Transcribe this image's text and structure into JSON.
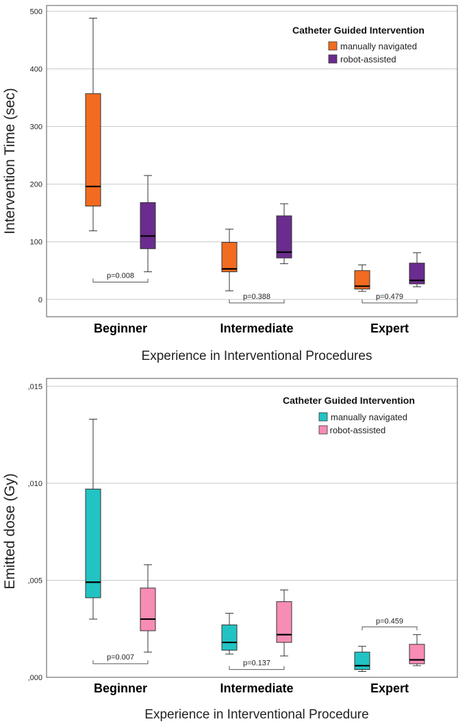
{
  "chart_data": [
    {
      "type": "box",
      "title": "",
      "xlabel": "Experience in Interventional Procedures",
      "ylabel": "Intervention Time (sec)",
      "categories": [
        "Beginner",
        "Intermediate",
        "Expert"
      ],
      "ylim": [
        -30,
        510
      ],
      "yticks": [
        0,
        100,
        200,
        300,
        400,
        500
      ],
      "ytick_labels": [
        "0",
        "100",
        "200",
        "300",
        "400",
        "500"
      ],
      "grid": true,
      "legend": {
        "title": "Catheter Guided Intervention",
        "placement": "top-right",
        "items": [
          "manually navigated",
          "robot-assisted"
        ]
      },
      "series": [
        {
          "name": "manually navigated",
          "color": "#F26B21",
          "boxes": [
            {
              "min": 119,
              "q1": 162,
              "median": 196,
              "q3": 357,
              "max": 488
            },
            {
              "min": 15,
              "q1": 48,
              "median": 53,
              "q3": 99,
              "max": 122
            },
            {
              "min": 14,
              "q1": 18,
              "median": 23,
              "q3": 50,
              "max": 60
            }
          ]
        },
        {
          "name": "robot-assisted",
          "color": "#6A2C8E",
          "boxes": [
            {
              "min": 48,
              "q1": 88,
              "median": 110,
              "q3": 168,
              "max": 215
            },
            {
              "min": 62,
              "q1": 72,
              "median": 82,
              "q3": 145,
              "max": 166
            },
            {
              "min": 22,
              "q1": 27,
              "median": 33,
              "q3": 63,
              "max": 81
            }
          ]
        }
      ],
      "pvalues": [
        {
          "label": "p=0.008",
          "y": 30,
          "dir": "up"
        },
        {
          "label": "p=0.388",
          "y": -6,
          "dir": "up"
        },
        {
          "label": "p=0.479",
          "y": -6,
          "dir": "up"
        }
      ]
    },
    {
      "type": "box",
      "title": "",
      "xlabel": "Experience in Interventional Procedure",
      "ylabel": "Emitted dose (Gy)",
      "categories": [
        "Beginner",
        "Intermediate",
        "Expert"
      ],
      "ylim": [
        0,
        0.0154
      ],
      "yticks": [
        0,
        0.005,
        0.01,
        0.015
      ],
      "ytick_labels": [
        ",000",
        ",005",
        ",010",
        ",015"
      ],
      "grid": true,
      "legend": {
        "title": "Catheter Guided Intervention",
        "placement": "top-right",
        "items": [
          "manually navigated",
          " robot-assisted"
        ]
      },
      "series": [
        {
          "name": "manually navigated",
          "color": "#22C3C3",
          "boxes": [
            {
              "min": 0.003,
              "q1": 0.0041,
              "median": 0.0049,
              "q3": 0.0097,
              "max": 0.0133
            },
            {
              "min": 0.0012,
              "q1": 0.0014,
              "median": 0.0018,
              "q3": 0.0027,
              "max": 0.0033
            },
            {
              "min": 0.0003,
              "q1": 0.0004,
              "median": 0.0006,
              "q3": 0.0013,
              "max": 0.0016
            }
          ]
        },
        {
          "name": "robot-assisted",
          "color": "#F78CB4",
          "boxes": [
            {
              "min": 0.0013,
              "q1": 0.0024,
              "median": 0.003,
              "q3": 0.0046,
              "max": 0.0058
            },
            {
              "min": 0.0011,
              "q1": 0.0018,
              "median": 0.0022,
              "q3": 0.0039,
              "max": 0.0045
            },
            {
              "min": 0.0006,
              "q1": 0.0007,
              "median": 0.0009,
              "q3": 0.0017,
              "max": 0.0022
            }
          ]
        }
      ],
      "pvalues": [
        {
          "label": "p=0.007",
          "y": 0.0007,
          "dir": "up"
        },
        {
          "label": "p=0.137",
          "y": 0.0004,
          "dir": "up"
        },
        {
          "label": "p=0.459",
          "y": 0.0026,
          "dir": "down"
        }
      ]
    }
  ]
}
